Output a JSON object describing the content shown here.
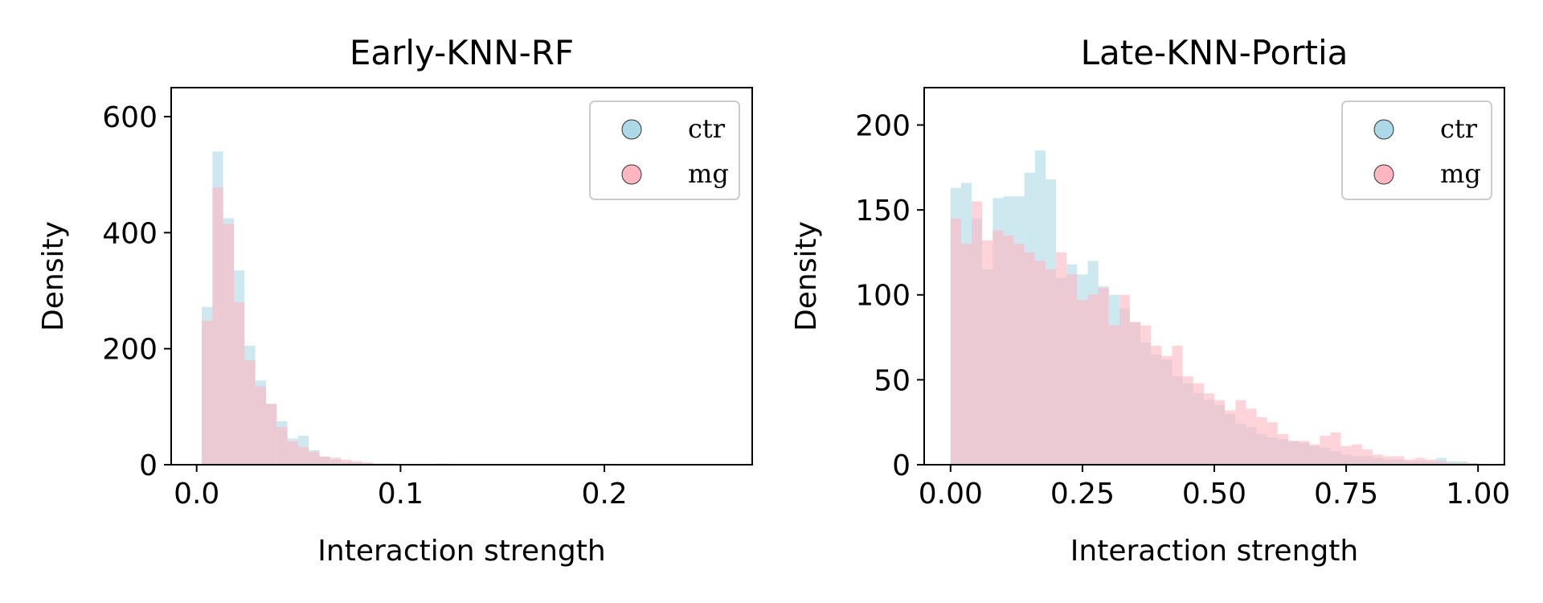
{
  "chart_data": [
    {
      "type": "histogram",
      "title": "Early-KNN-RF",
      "xlabel": "Interaction strength",
      "ylabel": "Density",
      "xlim": [
        -0.0125,
        0.2725
      ],
      "ylim": [
        0,
        650
      ],
      "xticks": [
        0.0,
        0.1,
        0.2
      ],
      "xtick_labels": [
        "0.0",
        "0.1",
        "0.2"
      ],
      "yticks": [
        0,
        200,
        400,
        600
      ],
      "ytick_labels": [
        "0",
        "200",
        "400",
        "600"
      ],
      "legend_position": "top-right",
      "bin_start": 0.0025,
      "bin_width": 0.00525,
      "series": [
        {
          "name": "ctr",
          "color": "#add8e6",
          "values": [
            272,
            540,
            425,
            335,
            205,
            145,
            105,
            75,
            45,
            50,
            25,
            14,
            9,
            5,
            4,
            3,
            2,
            2,
            1,
            1,
            1,
            1,
            2,
            0,
            0,
            0,
            0,
            0,
            0,
            0,
            0,
            0,
            0,
            0,
            0,
            0,
            0,
            0,
            0,
            0,
            0,
            0,
            0,
            0,
            0,
            0,
            0,
            0,
            0,
            0
          ]
        },
        {
          "name": "mg",
          "color": "#ffb6c1",
          "values": [
            248,
            478,
            415,
            280,
            180,
            135,
            105,
            65,
            40,
            30,
            22,
            14,
            12,
            9,
            6,
            4,
            2,
            2,
            1,
            1,
            1,
            1,
            1,
            0,
            0,
            0,
            0,
            0,
            0,
            0,
            0,
            0,
            0,
            0,
            0,
            0,
            0,
            0,
            0,
            0,
            0,
            0,
            0,
            0,
            0,
            0,
            0,
            0,
            0,
            0
          ]
        }
      ]
    },
    {
      "type": "histogram",
      "title": "Late-KNN-Portia",
      "xlabel": "Interaction strength",
      "ylabel": "Density",
      "xlim": [
        -0.05,
        1.05
      ],
      "ylim": [
        0,
        222
      ],
      "xticks": [
        0.0,
        0.25,
        0.5,
        0.75,
        1.0
      ],
      "xtick_labels": [
        "0.00",
        "0.25",
        "0.50",
        "0.75",
        "1.00"
      ],
      "yticks": [
        0,
        50,
        100,
        150,
        200
      ],
      "ytick_labels": [
        "0",
        "50",
        "100",
        "150",
        "200"
      ],
      "legend_position": "top-right",
      "bin_start": 0.0,
      "bin_width": 0.02,
      "series": [
        {
          "name": "ctr",
          "color": "#add8e6",
          "values": [
            163,
            166,
            145,
            115,
            157,
            158,
            158,
            172,
            185,
            168,
            110,
            118,
            112,
            120,
            105,
            100,
            92,
            84,
            72,
            65,
            62,
            52,
            48,
            42,
            38,
            35,
            30,
            24,
            22,
            18,
            16,
            15,
            14,
            13,
            11,
            10,
            8,
            6,
            5,
            5,
            4,
            3,
            3,
            2,
            2,
            2,
            4,
            2,
            2,
            1
          ]
        },
        {
          "name": "mg",
          "color": "#ffb6c1",
          "values": [
            145,
            130,
            155,
            132,
            138,
            135,
            130,
            125,
            120,
            115,
            125,
            112,
            97,
            100,
            104,
            82,
            100,
            84,
            82,
            70,
            64,
            70,
            52,
            48,
            42,
            38,
            32,
            38,
            33,
            28,
            25,
            18,
            14,
            14,
            12,
            17,
            19,
            11,
            12,
            9,
            6,
            5,
            5,
            3,
            4,
            3,
            2,
            1,
            1,
            1
          ]
        }
      ]
    }
  ]
}
